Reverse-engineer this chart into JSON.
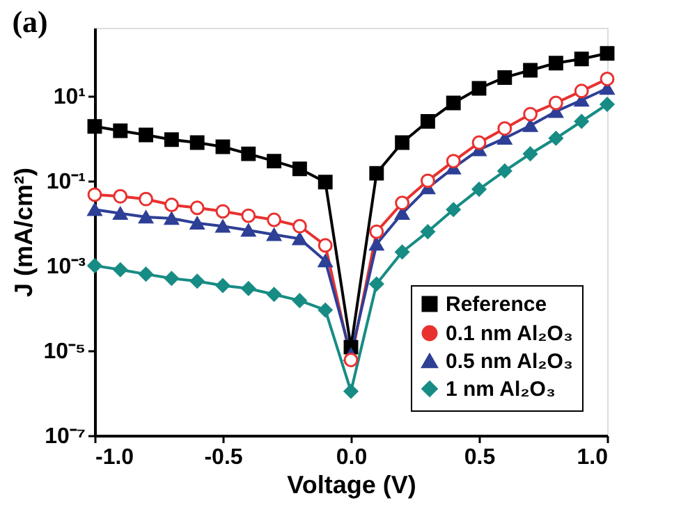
{
  "chart_data": {
    "type": "line",
    "title": "(a)",
    "xlabel": "Voltage (V)",
    "ylabel": "J (mA/cm²)",
    "x": [
      -1.0,
      -0.9,
      -0.8,
      -0.7,
      -0.6,
      -0.5,
      -0.4,
      -0.3,
      -0.2,
      -0.1,
      0.0,
      0.1,
      0.2,
      0.3,
      0.4,
      0.5,
      0.6,
      0.7,
      0.8,
      0.9,
      1.0
    ],
    "series": [
      {
        "name": "Reference",
        "color": "#000000",
        "marker": "square",
        "values": [
          1.9,
          1.5,
          1.2,
          0.93,
          0.79,
          0.63,
          0.43,
          0.29,
          0.19,
          0.093,
          1.2e-05,
          0.15,
          0.79,
          2.5,
          6.8,
          15,
          27,
          40,
          59,
          74,
          100
        ]
      },
      {
        "name": "0.1 nm Al₂O₃",
        "color": "#e8312f",
        "marker": "circle",
        "values": [
          0.047,
          0.043,
          0.037,
          0.027,
          0.023,
          0.019,
          0.015,
          0.012,
          0.0085,
          0.003,
          6e-06,
          0.0063,
          0.03,
          0.1,
          0.29,
          0.79,
          1.7,
          3.7,
          6.8,
          13,
          25
        ]
      },
      {
        "name": "0.5 nm Al₂O₃",
        "color": "#2e3f96",
        "marker": "triangle",
        "values": [
          0.021,
          0.017,
          0.014,
          0.013,
          0.01,
          0.0085,
          0.0068,
          0.0054,
          0.0043,
          0.0013,
          8e-06,
          0.0032,
          0.017,
          0.068,
          0.2,
          0.54,
          1,
          2,
          4.3,
          7.9,
          15
        ]
      },
      {
        "name": "1 nm Al₂O₃",
        "color": "#178c84",
        "marker": "diamond",
        "values": [
          0.001,
          0.0008,
          0.00063,
          0.0005,
          0.00043,
          0.00034,
          0.00029,
          0.00021,
          0.00015,
          9e-05,
          1.1e-06,
          0.00037,
          0.0021,
          0.0063,
          0.021,
          0.063,
          0.17,
          0.43,
          1,
          2.5,
          6.3
        ]
      }
    ],
    "log": "y",
    "xlim": [
      -1.0,
      1.0
    ],
    "xticks": [
      {
        "value": -1.0,
        "label": "-1.0"
      },
      {
        "value": -0.5,
        "label": "-0.5"
      },
      {
        "value": 0.0,
        "label": "0.0"
      },
      {
        "value": 0.5,
        "label": "0.5"
      },
      {
        "value": 1.0,
        "label": "1.0"
      }
    ],
    "ylim": [
      1e-07,
      400
    ],
    "yticks": [
      {
        "value": 1e-07,
        "label": "10⁻⁷"
      },
      {
        "value": 1e-05,
        "label": "10⁻⁵"
      },
      {
        "value": 0.001,
        "label": "10⁻³"
      },
      {
        "value": 0.1,
        "label": "10⁻¹"
      },
      {
        "value": 10,
        "label": "10¹"
      }
    ],
    "grid": false,
    "legend": "bottom right",
    "line_style": "solid"
  }
}
